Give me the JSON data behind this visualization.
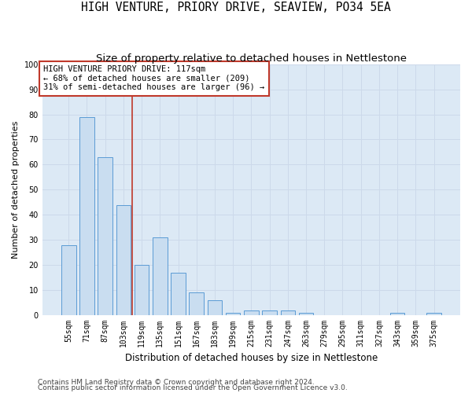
{
  "title": "HIGH VENTURE, PRIORY DRIVE, SEAVIEW, PO34 5EA",
  "subtitle": "Size of property relative to detached houses in Nettlestone",
  "xlabel": "Distribution of detached houses by size in Nettlestone",
  "ylabel": "Number of detached properties",
  "categories": [
    "55sqm",
    "71sqm",
    "87sqm",
    "103sqm",
    "119sqm",
    "135sqm",
    "151sqm",
    "167sqm",
    "183sqm",
    "199sqm",
    "215sqm",
    "231sqm",
    "247sqm",
    "263sqm",
    "279sqm",
    "295sqm",
    "311sqm",
    "327sqm",
    "343sqm",
    "359sqm",
    "375sqm"
  ],
  "values": [
    28,
    79,
    63,
    44,
    20,
    31,
    17,
    9,
    6,
    1,
    2,
    2,
    2,
    1,
    0,
    0,
    0,
    0,
    1,
    0,
    1
  ],
  "bar_color": "#c9ddf0",
  "bar_edge_color": "#5b9bd5",
  "bar_edge_width": 0.7,
  "vline_x": 3.5,
  "vline_color": "#c0392b",
  "annotation_line1": "HIGH VENTURE PRIORY DRIVE: 117sqm",
  "annotation_line2": "← 68% of detached houses are smaller (209)",
  "annotation_line3": "31% of semi-detached houses are larger (96) →",
  "annotation_box_color": "#c0392b",
  "ylim": [
    0,
    100
  ],
  "yticks": [
    0,
    10,
    20,
    30,
    40,
    50,
    60,
    70,
    80,
    90,
    100
  ],
  "grid_color": "#ccd9ea",
  "background_color": "#dce9f5",
  "footnote1": "Contains HM Land Registry data © Crown copyright and database right 2024.",
  "footnote2": "Contains public sector information licensed under the Open Government Licence v3.0.",
  "title_fontsize": 10.5,
  "subtitle_fontsize": 9.5,
  "xlabel_fontsize": 8.5,
  "ylabel_fontsize": 8,
  "tick_fontsize": 7,
  "annotation_fontsize": 7.5,
  "footnote_fontsize": 6.5
}
